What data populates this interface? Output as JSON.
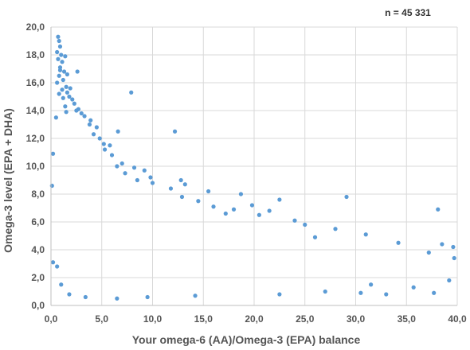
{
  "chart_data": {
    "type": "scatter",
    "xlabel": "Your omega-6 (AA)/Omega-3 (EPA) balance",
    "ylabel": "Omega-3 level (EPA + DHA)",
    "annotation": "n = 45 331",
    "xlim": [
      0,
      40
    ],
    "ylim": [
      0,
      20
    ],
    "grid": true,
    "x_ticks": [
      "0,0",
      "5,0",
      "10,0",
      "15,0",
      "20,0",
      "25,0",
      "30,0",
      "35,0",
      "40,0"
    ],
    "y_ticks": [
      "0,0",
      "2,0",
      "4,0",
      "6,0",
      "8,0",
      "10,0",
      "12,0",
      "14,0",
      "16,0",
      "18,0",
      "20,0"
    ],
    "point_color": "#5b9bd5",
    "series": [
      {
        "values": [
          [
            0.7,
            19.3
          ],
          [
            0.8,
            19.0
          ],
          [
            0.9,
            18.6
          ],
          [
            0.6,
            18.2
          ],
          [
            1.0,
            18.0
          ],
          [
            1.4,
            17.9
          ],
          [
            0.7,
            17.7
          ],
          [
            1.1,
            17.5
          ],
          [
            0.9,
            17.1
          ],
          [
            1.3,
            16.8
          ],
          [
            0.8,
            16.5
          ],
          [
            2.6,
            16.8
          ],
          [
            1.2,
            16.2
          ],
          [
            0.6,
            16.0
          ],
          [
            1.5,
            15.7
          ],
          [
            1.1,
            15.5
          ],
          [
            0.8,
            15.2
          ],
          [
            1.8,
            15.0
          ],
          [
            7.9,
            15.3
          ],
          [
            2.3,
            14.5
          ],
          [
            1.4,
            14.3
          ],
          [
            2.7,
            14.1
          ],
          [
            0.5,
            13.5
          ],
          [
            3.9,
            13.3
          ],
          [
            4.5,
            12.8
          ],
          [
            6.6,
            12.5
          ],
          [
            12.2,
            12.5
          ],
          [
            5.2,
            11.6
          ],
          [
            0.2,
            10.9
          ],
          [
            6.5,
            10.0
          ],
          [
            7.3,
            9.5
          ],
          [
            9.2,
            9.7
          ],
          [
            12.8,
            9.0
          ],
          [
            13.2,
            8.7
          ],
          [
            15.5,
            8.2
          ],
          [
            18.7,
            8.0
          ],
          [
            22.5,
            7.6
          ],
          [
            29.1,
            7.8
          ],
          [
            38.1,
            6.9
          ],
          [
            0.1,
            8.6
          ],
          [
            0.2,
            3.1
          ],
          [
            0.6,
            2.8
          ],
          [
            1.0,
            1.5
          ],
          [
            1.8,
            0.8
          ],
          [
            3.4,
            0.6
          ],
          [
            6.5,
            0.5
          ],
          [
            9.5,
            0.6
          ],
          [
            14.2,
            0.7
          ],
          [
            22.5,
            0.8
          ],
          [
            27.0,
            1.0
          ],
          [
            31.5,
            1.5
          ],
          [
            35.7,
            1.3
          ],
          [
            37.7,
            0.9
          ],
          [
            39.2,
            1.8
          ],
          [
            39.7,
            3.4
          ],
          [
            39.6,
            4.2
          ],
          [
            38.5,
            4.4
          ],
          [
            37.2,
            3.8
          ],
          [
            34.2,
            4.5
          ],
          [
            31.0,
            5.1
          ],
          [
            28.0,
            5.5
          ],
          [
            25.0,
            5.8
          ],
          [
            21.5,
            6.8
          ],
          [
            18.0,
            6.9
          ],
          [
            16.0,
            7.1
          ],
          [
            14.5,
            7.5
          ],
          [
            11.8,
            8.4
          ],
          [
            10.0,
            8.8
          ],
          [
            8.5,
            9.0
          ],
          [
            7.0,
            10.2
          ],
          [
            5.8,
            11.5
          ],
          [
            4.8,
            12.0
          ],
          [
            3.8,
            13.0
          ],
          [
            3.0,
            13.8
          ],
          [
            2.1,
            14.8
          ],
          [
            1.6,
            15.3
          ],
          [
            30.5,
            0.9
          ],
          [
            33.0,
            0.8
          ],
          [
            26.0,
            4.9
          ],
          [
            24.0,
            6.1
          ],
          [
            20.5,
            6.5
          ],
          [
            19.8,
            7.2
          ],
          [
            17.2,
            6.6
          ],
          [
            12.9,
            7.8
          ],
          [
            9.8,
            9.2
          ],
          [
            8.2,
            9.9
          ],
          [
            6.0,
            10.8
          ],
          [
            5.3,
            11.2
          ],
          [
            4.2,
            12.3
          ],
          [
            3.3,
            13.6
          ],
          [
            2.5,
            14.0
          ],
          [
            1.9,
            15.6
          ],
          [
            1.6,
            16.6
          ],
          [
            0.9,
            16.9
          ],
          [
            1.2,
            14.9
          ],
          [
            1.5,
            13.9
          ]
        ]
      }
    ]
  }
}
